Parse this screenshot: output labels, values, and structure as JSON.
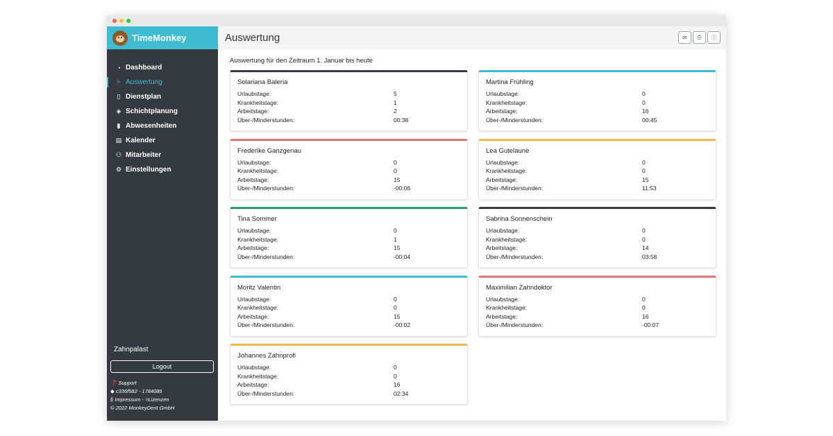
{
  "app": {
    "brand": "TimeMonkey"
  },
  "sidebar": {
    "items": [
      {
        "label": "Dashboard",
        "icon": "gauge-icon"
      },
      {
        "label": "Auswertung",
        "icon": "chart-icon"
      },
      {
        "label": "Dienstplan",
        "icon": "clipboard-icon"
      },
      {
        "label": "Schichtplanung",
        "icon": "layers-icon"
      },
      {
        "label": "Abwesenheiten",
        "icon": "door-icon"
      },
      {
        "label": "Kalender",
        "icon": "calendar-icon"
      },
      {
        "label": "Mitarbeiter",
        "icon": "people-icon"
      },
      {
        "label": "Einstellungen",
        "icon": "gear-icon"
      }
    ],
    "company": "Zahnpalast",
    "logout_label": "Logout",
    "support": "Support",
    "version": "c336f582 - 1784086",
    "impressum": "§ Impressum - ",
    "lizenzen": "Lizenzen",
    "copyright": "© 2022 MonkeyDent GmbH"
  },
  "main": {
    "title": "Auswertung",
    "period": "Auswertung für den Zeitraum 1. Januar bis heute"
  },
  "labels": {
    "urlaub": "Urlaubstage:",
    "krank": "Krankheitstage:",
    "arbeit": "Arbeitstage:",
    "stunden": "Über-/Minderstunden:"
  },
  "colors": {
    "accent": "#3fbcd1",
    "sidebar_bg": "#343a40"
  },
  "employees": [
    {
      "name": "Solariana Baleria",
      "color": "#343a40",
      "urlaub": "5",
      "krank": "1",
      "arbeit": "2",
      "stunden": "00:38"
    },
    {
      "name": "Martina Frühling",
      "color": "#3fbcd1",
      "urlaub": "0",
      "krank": "0",
      "arbeit": "16",
      "stunden": "00:45"
    },
    {
      "name": "Frederike Ganzgenau",
      "color": "#e57373",
      "urlaub": "0",
      "krank": "0",
      "arbeit": "15",
      "stunden": "-00:06"
    },
    {
      "name": "Lea Gutelaune",
      "color": "#f0b94a",
      "urlaub": "0",
      "krank": "0",
      "arbeit": "15",
      "stunden": "11:53"
    },
    {
      "name": "Tina Sommer",
      "color": "#2e9c72",
      "urlaub": "0",
      "krank": "1",
      "arbeit": "15",
      "stunden": "-00:04"
    },
    {
      "name": "Sabrina Sonnenschein",
      "color": "#343a40",
      "urlaub": "0",
      "krank": "0",
      "arbeit": "14",
      "stunden": "03:58"
    },
    {
      "name": "Moritz Valentin",
      "color": "#3fbcd1",
      "urlaub": "0",
      "krank": "0",
      "arbeit": "15",
      "stunden": "-00:02"
    },
    {
      "name": "Maximilian Zahndoktor",
      "color": "#e57373",
      "urlaub": "0",
      "krank": "0",
      "arbeit": "16",
      "stunden": "-00:07"
    },
    {
      "name": "Johannes Zahnprofi",
      "color": "#f0b94a",
      "urlaub": "0",
      "krank": "0",
      "arbeit": "16",
      "stunden": "02:34"
    }
  ]
}
